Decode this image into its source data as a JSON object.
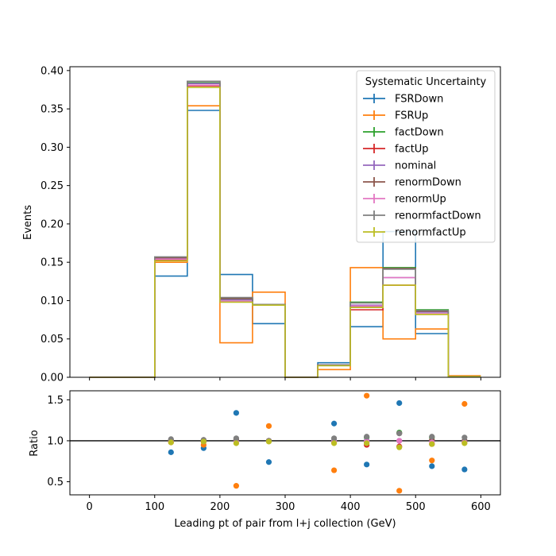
{
  "chart_data": [
    {
      "type": "line",
      "step": true,
      "panel": "main",
      "ylabel": "Events",
      "xlim": [
        -30,
        630
      ],
      "ylim": [
        0,
        0.405
      ],
      "xticks": [
        0,
        100,
        200,
        300,
        400,
        500,
        600
      ],
      "yticks": [
        "0.00",
        "0.05",
        "0.10",
        "0.15",
        "0.20",
        "0.25",
        "0.30",
        "0.35",
        "0.40"
      ],
      "bin_edges": [
        0,
        50,
        100,
        150,
        200,
        250,
        300,
        350,
        400,
        450,
        500,
        550,
        600
      ],
      "legend": {
        "title": "Systematic Uncertainty",
        "placement": "top-right"
      },
      "series": [
        {
          "name": "FSRDown",
          "color": "#1f77b4",
          "values": [
            0,
            0,
            0.132,
            0.348,
            0.134,
            0.07,
            0,
            0.019,
            0.066,
            0.19,
            0.057,
            0.001
          ]
        },
        {
          "name": "FSRUp",
          "color": "#ff7f0e",
          "values": [
            0,
            0,
            0.15,
            0.354,
            0.045,
            0.111,
            0,
            0.01,
            0.143,
            0.05,
            0.063,
            0.002
          ]
        },
        {
          "name": "factDown",
          "color": "#2ca02c",
          "values": [
            0,
            0,
            0.155,
            0.384,
            0.102,
            0.095,
            0,
            0.016,
            0.098,
            0.143,
            0.088,
            0.001
          ]
        },
        {
          "name": "factUp",
          "color": "#d62728",
          "values": [
            0,
            0,
            0.153,
            0.38,
            0.101,
            0.095,
            0,
            0.016,
            0.088,
            0.12,
            0.082,
            0.001
          ]
        },
        {
          "name": "nominal",
          "color": "#9467bd",
          "values": [
            0,
            0,
            0.155,
            0.383,
            0.101,
            0.095,
            0,
            0.016,
            0.094,
            0.13,
            0.085,
            0.001
          ]
        },
        {
          "name": "renormDown",
          "color": "#8c564b",
          "values": [
            0,
            0,
            0.156,
            0.386,
            0.103,
            0.095,
            0,
            0.016,
            0.092,
            0.142,
            0.086,
            0.001
          ]
        },
        {
          "name": "renormUp",
          "color": "#e377c2",
          "values": [
            0,
            0,
            0.154,
            0.381,
            0.099,
            0.095,
            0,
            0.016,
            0.093,
            0.13,
            0.083,
            0.001
          ]
        },
        {
          "name": "renormfactDown",
          "color": "#7f7f7f",
          "values": [
            0,
            0,
            0.157,
            0.386,
            0.104,
            0.095,
            0,
            0.016,
            0.097,
            0.141,
            0.087,
            0.001
          ]
        },
        {
          "name": "renormfactUp",
          "color": "#bcbd22",
          "values": [
            0,
            0,
            0.152,
            0.378,
            0.098,
            0.094,
            0,
            0.015,
            0.091,
            0.12,
            0.082,
            0.001
          ]
        }
      ]
    },
    {
      "type": "scatter",
      "panel": "ratio",
      "xlabel": "Leading pt of pair from l+j collection (GeV)",
      "ylabel": "Ratio",
      "xlim": [
        -30,
        630
      ],
      "ylim": [
        0.34,
        1.61
      ],
      "xticks": [
        0,
        100,
        200,
        300,
        400,
        500,
        600
      ],
      "yticks": [
        "0.5",
        "1.0",
        "1.5"
      ],
      "reference_line": 1.0,
      "x": [
        125,
        175,
        225,
        275,
        375,
        425,
        475,
        525,
        575
      ],
      "series": [
        {
          "name": "FSRDown",
          "color": "#1f77b4",
          "values": [
            0.86,
            0.91,
            1.34,
            0.74,
            1.21,
            0.71,
            1.46,
            0.69,
            0.65
          ]
        },
        {
          "name": "FSRUp",
          "color": "#ff7f0e",
          "values": [
            0.98,
            0.95,
            0.45,
            1.18,
            0.64,
            1.55,
            0.39,
            0.76,
            1.45
          ]
        },
        {
          "name": "factDown",
          "color": "#2ca02c",
          "values": [
            1.0,
            1.0,
            1.01,
            1.0,
            1.0,
            1.04,
            1.1,
            1.04,
            1.0
          ]
        },
        {
          "name": "factUp",
          "color": "#d62728",
          "values": [
            0.99,
            0.99,
            1.0,
            1.0,
            0.99,
            0.95,
            0.93,
            0.96,
            0.98
          ]
        },
        {
          "name": "nominal",
          "color": "#9467bd",
          "values": [
            1.0,
            1.0,
            1.0,
            1.0,
            1.0,
            1.0,
            1.0,
            1.0,
            1.0
          ]
        },
        {
          "name": "renormDown",
          "color": "#8c564b",
          "values": [
            1.01,
            1.01,
            1.02,
            1.0,
            0.98,
            0.98,
            1.09,
            1.01,
            1.0
          ]
        },
        {
          "name": "renormUp",
          "color": "#e377c2",
          "values": [
            0.99,
            0.99,
            0.98,
            1.0,
            0.99,
            0.99,
            1.0,
            0.98,
            0.98
          ]
        },
        {
          "name": "renormfactDown",
          "color": "#7f7f7f",
          "values": [
            1.02,
            1.01,
            1.03,
            1.0,
            1.03,
            1.05,
            1.09,
            1.05,
            1.04
          ]
        },
        {
          "name": "renormfactUp",
          "color": "#bcbd22",
          "values": [
            0.98,
            0.99,
            0.97,
            0.99,
            0.97,
            0.97,
            0.92,
            0.96,
            0.97
          ]
        }
      ]
    }
  ]
}
